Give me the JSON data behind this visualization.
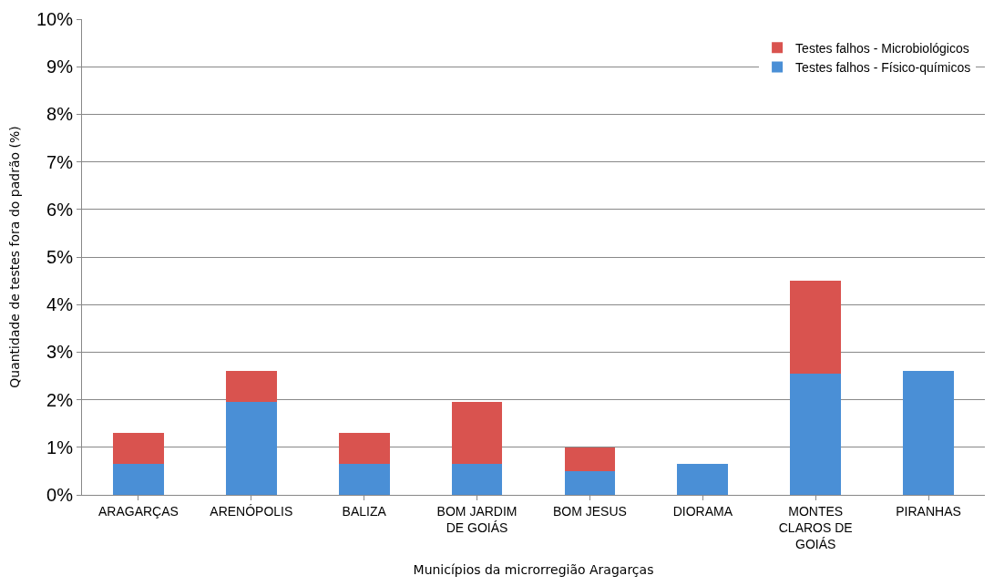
{
  "chart_data": {
    "type": "bar",
    "stacked": true,
    "xlabel": "Municípios da microrregião Aragarças",
    "ylabel": "Quantidade de testes fora do padrão (%)",
    "categories": [
      "ARAGARÇAS",
      "ARENÓPOLIS",
      "BALIZA",
      "BOM JARDIM DE GOIÁS",
      "BOM JESUS",
      "DIORAMA",
      "MONTES CLAROS DE GOIÁS",
      "PIRANHAS"
    ],
    "series": [
      {
        "name": "Testes falhos - Físico-químicos",
        "color": "#4a8fd6",
        "values": [
          0.65,
          1.95,
          0.65,
          0.65,
          0.5,
          0.65,
          2.55,
          2.6
        ]
      },
      {
        "name": "Testes falhos - Microbiológicos",
        "color": "#d9534f",
        "values": [
          0.65,
          0.65,
          0.65,
          1.3,
          0.5,
          0,
          1.95,
          0
        ]
      }
    ],
    "ylim": [
      0,
      10
    ],
    "yticks": [
      {
        "value": 0,
        "label": "0%"
      },
      {
        "value": 1,
        "label": "1%"
      },
      {
        "value": 2,
        "label": "2%"
      },
      {
        "value": 3,
        "label": "3%"
      },
      {
        "value": 4,
        "label": "4%"
      },
      {
        "value": 5,
        "label": "5%"
      },
      {
        "value": 6,
        "label": "6%"
      },
      {
        "value": 7,
        "label": "7%"
      },
      {
        "value": 8,
        "label": "8%"
      },
      {
        "value": 9,
        "label": "9%"
      },
      {
        "value": 10,
        "label": "10%"
      }
    ],
    "grid": "y",
    "legend": "top right"
  }
}
